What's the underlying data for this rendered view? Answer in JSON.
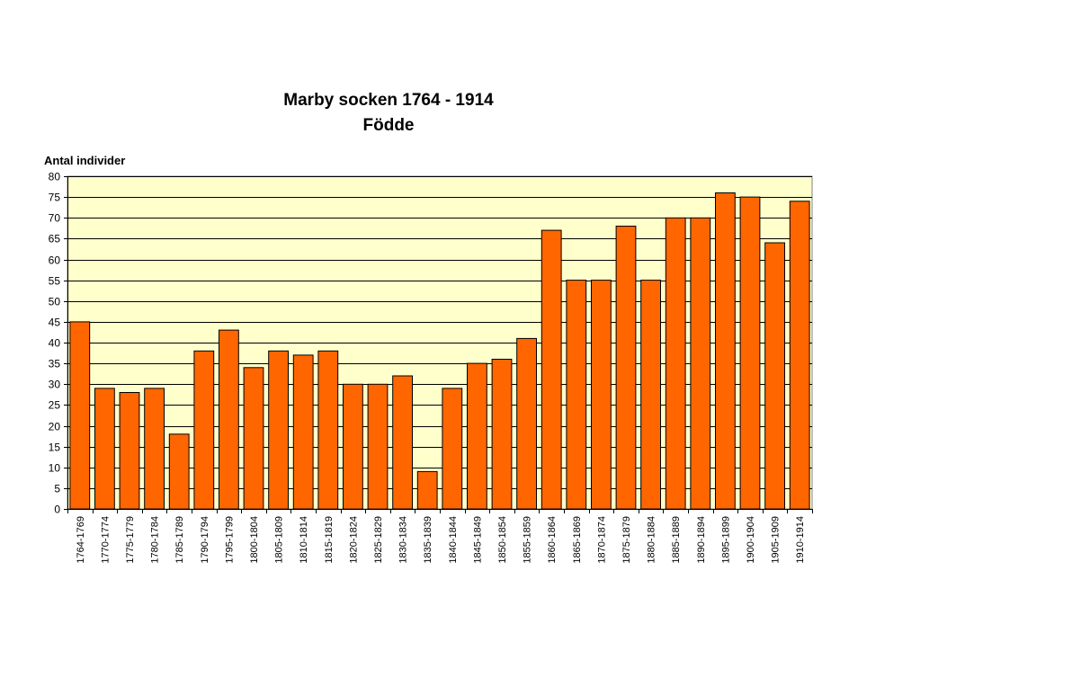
{
  "chart_data": {
    "type": "bar",
    "title": "Marby socken 1764 - 1914",
    "subtitle": "Födde",
    "xlabel": "",
    "ylabel": "Antal individer",
    "ylim": [
      0,
      80
    ],
    "ytick_step": 5,
    "grid": true,
    "legend": "none",
    "colors": {
      "bar_fill": "#FF6600",
      "bar_stroke": "#000000",
      "plot_background": "#FFFFCC",
      "gridline": "#000000"
    },
    "categories": [
      "1764-1769",
      "1770-1774",
      "1775-1779",
      "1780-1784",
      "1785-1789",
      "1790-1794",
      "1795-1799",
      "1800-1804",
      "1805-1809",
      "1810-1814",
      "1815-1819",
      "1820-1824",
      "1825-1829",
      "1830-1834",
      "1835-1839",
      "1840-1844",
      "1845-1849",
      "1850-1854",
      "1855-1859",
      "1860-1864",
      "1865-1869",
      "1870-1874",
      "1875-1879",
      "1880-1884",
      "1885-1889",
      "1890-1894",
      "1895-1899",
      "1900-1904",
      "1905-1909",
      "1910-1914"
    ],
    "values": [
      45,
      29,
      28,
      29,
      18,
      38,
      43,
      34,
      38,
      37,
      38,
      30,
      30,
      32,
      9,
      29,
      35,
      36,
      41,
      67,
      55,
      55,
      68,
      55,
      70,
      70,
      76,
      75,
      64,
      74
    ]
  }
}
